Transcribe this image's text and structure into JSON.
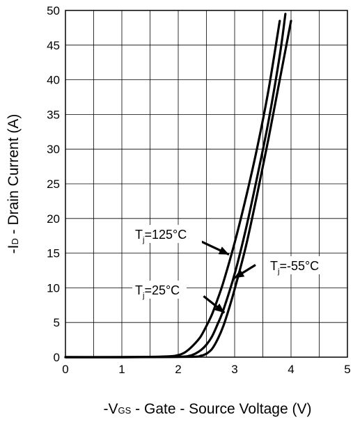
{
  "chart_data": {
    "type": "line",
    "xlabel": "-VGS - Gate - Source Voltage (V)",
    "xlabel_parts": {
      "prefix": "-V",
      "subscript": "GS",
      "suffix": " - Gate - Source Voltage (V)"
    },
    "ylabel": "-ID - Drain Current (A)",
    "ylabel_parts": {
      "prefix": "-I",
      "subscript": "D",
      "suffix": " - Drain Current (A)"
    },
    "xlim": [
      0,
      5
    ],
    "ylim": [
      0,
      50
    ],
    "x_ticks": [
      "0",
      "1",
      "2",
      "3",
      "4",
      "5"
    ],
    "y_ticks": [
      "0",
      "5",
      "10",
      "15",
      "20",
      "25",
      "30",
      "35",
      "40",
      "45",
      "50"
    ],
    "grid": true,
    "series": [
      {
        "name": "Tj=125°C",
        "x": [
          0,
          1.0,
          1.8,
          2.0,
          2.1,
          2.2,
          2.3,
          2.4,
          2.5,
          2.6,
          2.7,
          2.8,
          3.0,
          3.2,
          3.4,
          3.6,
          3.8
        ],
        "y": [
          0,
          0,
          0.1,
          0.3,
          0.6,
          1.2,
          2.0,
          3.0,
          4.5,
          6.2,
          8.4,
          10.8,
          16.5,
          23.0,
          30.2,
          38.5,
          48.5
        ]
      },
      {
        "name": "Tj=25°C",
        "x": [
          0,
          1.0,
          2.0,
          2.2,
          2.3,
          2.4,
          2.5,
          2.6,
          2.7,
          2.8,
          3.0,
          3.2,
          3.4,
          3.6,
          3.8,
          3.9
        ],
        "y": [
          0,
          0,
          0.05,
          0.2,
          0.5,
          1.0,
          1.8,
          3.0,
          4.8,
          6.8,
          12.0,
          18.5,
          26.0,
          34.0,
          43.5,
          49.5
        ]
      },
      {
        "name": "Tj=-55°C",
        "x": [
          0,
          1.0,
          2.2,
          2.4,
          2.5,
          2.6,
          2.7,
          2.8,
          2.9,
          3.0,
          3.2,
          3.4,
          3.6,
          3.8,
          4.0
        ],
        "y": [
          0,
          0,
          0.05,
          0.2,
          0.5,
          1.2,
          2.6,
          4.5,
          7.0,
          9.8,
          16.0,
          23.5,
          31.5,
          40.0,
          48.5
        ]
      }
    ],
    "annotations": [
      {
        "main": "T",
        "sub": "j",
        "rest": "=125°C"
      },
      {
        "main": "T",
        "sub": "j",
        "rest": "=25°C"
      },
      {
        "main": "T",
        "sub": "j",
        "rest": "=-55°C"
      }
    ],
    "colors": {
      "line": "#000000",
      "grid": "#000000",
      "background": "#ffffff"
    }
  }
}
